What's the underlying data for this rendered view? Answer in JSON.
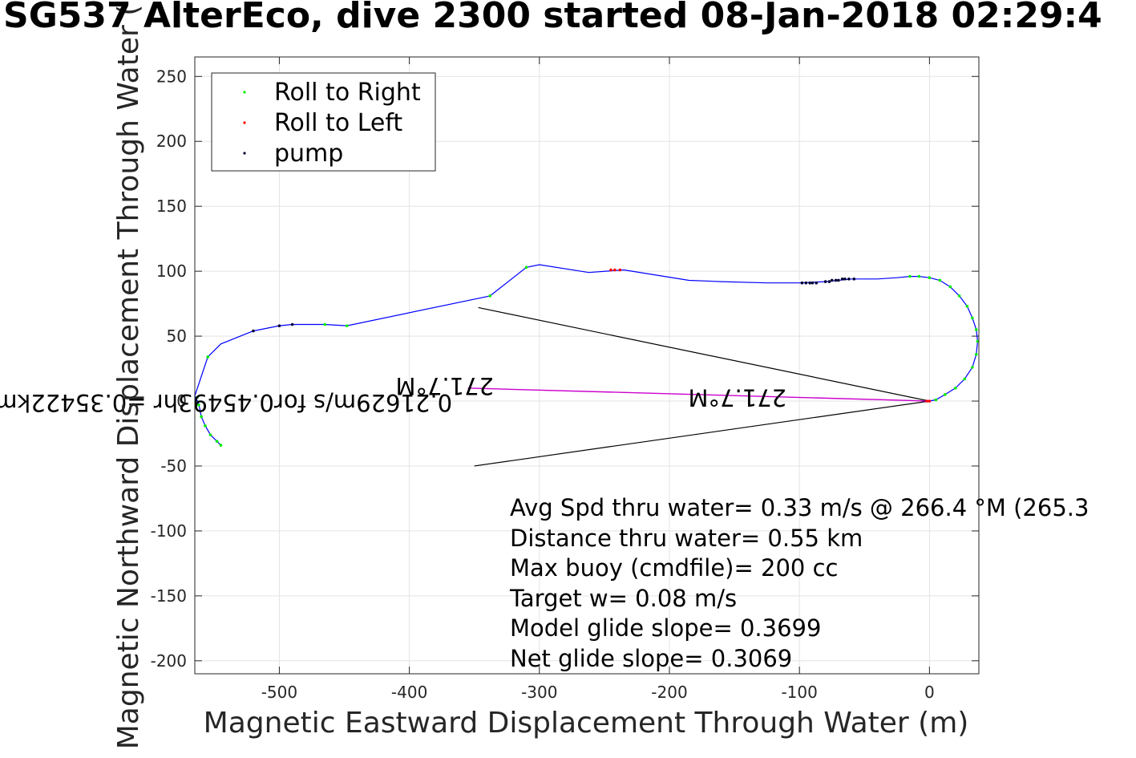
{
  "title": "SG537 AlterEco, dive 2300 started 08-Jan-2018 02:29:4",
  "chart_data": {
    "type": "scatter",
    "xlabel": "Magnetic Eastward Displacement Through Water (m)",
    "ylabel": "Magnetic Northward Displacement Through Water (",
    "xlim": [
      -565,
      38
    ],
    "ylim": [
      -210,
      265
    ],
    "xticks": [
      -500,
      -400,
      -300,
      -200,
      -100,
      0
    ],
    "yticks": [
      -200,
      -150,
      -100,
      -50,
      0,
      50,
      100,
      150,
      200,
      250
    ],
    "grid": true,
    "legend": {
      "placement": "top-left",
      "entries": [
        {
          "label": "Roll to Right",
          "color": "#00ee00"
        },
        {
          "label": "Roll to Left",
          "color": "#ff0000"
        },
        {
          "label": "pump",
          "color": "#000033"
        }
      ]
    },
    "track": {
      "color": "#0000ff",
      "x": [
        0,
        5,
        12,
        20,
        27,
        33,
        36,
        37,
        36,
        33,
        29,
        23,
        16,
        8,
        0,
        -8,
        -15,
        -25,
        -40,
        -60,
        -80,
        -100,
        -125,
        -160,
        -185,
        -210,
        -235,
        -262,
        -300,
        -310,
        -338,
        -448,
        -465,
        -490,
        -500,
        -520,
        -545,
        -555,
        -565,
        -562,
        -560,
        -557,
        -553,
        -548,
        -545
      ],
      "y": [
        0,
        1,
        5,
        10,
        17,
        26,
        36,
        46,
        55,
        64,
        73,
        81,
        88,
        93,
        95,
        96,
        96,
        95,
        94,
        94,
        92,
        91,
        91,
        92,
        93,
        97,
        101,
        99,
        105,
        103,
        81,
        58,
        59,
        59,
        58,
        54,
        44,
        34,
        4,
        -2,
        -12,
        -19,
        -26,
        -31,
        -34
      ]
    },
    "roll_right": {
      "x": [
        5,
        12,
        20,
        27,
        33,
        36,
        37,
        36,
        33,
        29,
        23,
        16,
        8,
        0,
        -8,
        -15,
        -310,
        -338,
        -465,
        -448,
        -555,
        -563,
        -562,
        -560,
        -557,
        -553,
        -548,
        -545
      ],
      "y": [
        1,
        5,
        10,
        17,
        26,
        36,
        46,
        55,
        64,
        73,
        81,
        88,
        93,
        95,
        96,
        96,
        103,
        81,
        59,
        58,
        34,
        3,
        -3,
        -12,
        -19,
        -26,
        -31,
        -34
      ]
    },
    "roll_left": {
      "x": [
        0,
        -2,
        -245,
        -242,
        -238
      ],
      "y": [
        0,
        0,
        101,
        101,
        101
      ]
    },
    "pump": {
      "x": [
        -98,
        -95,
        -92,
        -90,
        -87,
        -80,
        -77,
        -75,
        -72,
        -70,
        -67,
        -65,
        -62,
        -58,
        -520,
        -500,
        -490
      ],
      "y": [
        91,
        91,
        91,
        91,
        91,
        92,
        92,
        93,
        93,
        93,
        94,
        94,
        94,
        94,
        54,
        58,
        59
      ]
    },
    "current_vector": {
      "color": "#cc00cc",
      "x": [
        0,
        -355
      ],
      "y": [
        0,
        10
      ]
    },
    "wedge_lines": {
      "color": "#000000",
      "upper": {
        "x": [
          0,
          -347
        ],
        "y": [
          0,
          72
        ]
      },
      "lower": {
        "x": [
          0,
          -350
        ],
        "y": [
          0,
          -50
        ]
      }
    },
    "current_labels": [
      {
        "text": "0.21629m/s for0.45493hr =0.35422km",
        "x": -367,
        "y": 5,
        "rotate": 180
      },
      {
        "text": "271.7°M",
        "x": -335,
        "y": 18,
        "rotate": 180
      },
      {
        "text": "271.7°M",
        "x": -110,
        "y": 9,
        "rotate": 180
      }
    ],
    "annotations": [
      "Avg Spd thru water=  0.33 m/s @ 266.4 °M (265.3",
      "Distance thru water=  0.55 km",
      "Max buoy (cmdfile)= 200 cc",
      "Target w= 0.08 m/s",
      "Model glide slope= 0.3699",
      "Net glide slope= 0.3069"
    ]
  }
}
